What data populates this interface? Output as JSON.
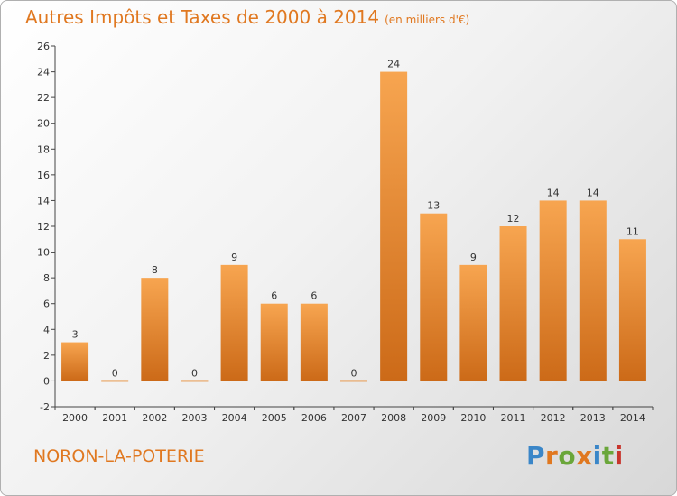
{
  "header": {
    "title": "Autres Impôts et Taxes de 2000 à 2014",
    "unit_note": "(en milliers d'€)"
  },
  "footer": {
    "commune": "NORON-LA-POTERIE",
    "logo_text": "Proxiti",
    "logo_colors": [
      "#3a86c8",
      "#e07820",
      "#6aa63a",
      "#e07820",
      "#3a86c8",
      "#6aa63a",
      "#c8342c"
    ]
  },
  "colors": {
    "bar_light": "#f7a550",
    "bar_dark": "#cc6a18",
    "accent": "#e07820",
    "zero_bar": "#e89a50"
  },
  "chart_data": {
    "type": "bar",
    "title": "Autres Impôts et Taxes de 2000 à 2014",
    "subtitle": "(en milliers d'€)",
    "categories": [
      "2000",
      "2001",
      "2002",
      "2003",
      "2004",
      "2005",
      "2006",
      "2007",
      "2008",
      "2009",
      "2010",
      "2011",
      "2012",
      "2013",
      "2014"
    ],
    "values": [
      3,
      0,
      8,
      0,
      9,
      6,
      6,
      0,
      24,
      13,
      9,
      12,
      14,
      14,
      11
    ],
    "ylim": [
      -2,
      26
    ],
    "yticks": [
      -2,
      0,
      2,
      4,
      6,
      8,
      10,
      12,
      14,
      16,
      18,
      20,
      22,
      24,
      26
    ],
    "xlabel": "",
    "ylabel": "",
    "grid": false,
    "legend": "none"
  }
}
